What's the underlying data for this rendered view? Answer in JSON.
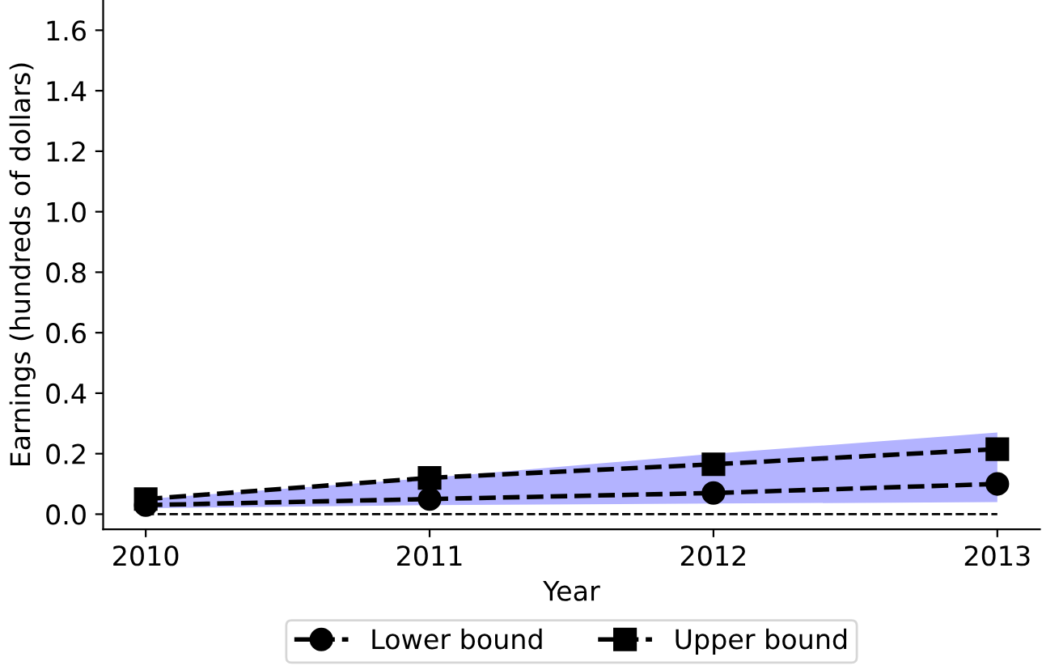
{
  "chart_data": {
    "type": "line",
    "xlabel": "Year",
    "ylabel": "Earnings (hundreds of dollars)",
    "x": [
      2010,
      2011,
      2012,
      2013
    ],
    "series": [
      {
        "color": "#b3b3ff",
        "type": "area",
        "values": [
          null,
          null,
          null,
          null
        ],
        "lower": [
          0.02,
          0.03,
          0.035,
          0.04
        ],
        "upper": [
          0.05,
          0.12,
          0.2,
          0.27
        ]
      },
      {
        "name": "Lower bound",
        "color": "#000000",
        "marker": "circle",
        "values": [
          0.03,
          0.05,
          0.07,
          0.1
        ]
      },
      {
        "name": "Upper bound",
        "color": "#000000",
        "marker": "square",
        "values": [
          0.05,
          0.12,
          0.165,
          0.215
        ]
      }
    ],
    "line_style": "dashed",
    "ref_lines": [
      {
        "axis": "y",
        "value": 0,
        "color": "#000000",
        "line_style": "dashed"
      }
    ],
    "xlim": [
      2009.85,
      2013.15
    ],
    "xticks": [
      2010,
      2011,
      2012,
      2013
    ],
    "ylim": [
      -0.05,
      1.7
    ],
    "yticks": [
      {
        "value": 0,
        "label": "0.0"
      },
      0.2,
      0.4,
      0.6,
      0.8,
      {
        "value": 1,
        "label": "1.0"
      },
      1.2,
      1.4,
      1.6
    ],
    "grid": false,
    "legend": "bottom"
  }
}
